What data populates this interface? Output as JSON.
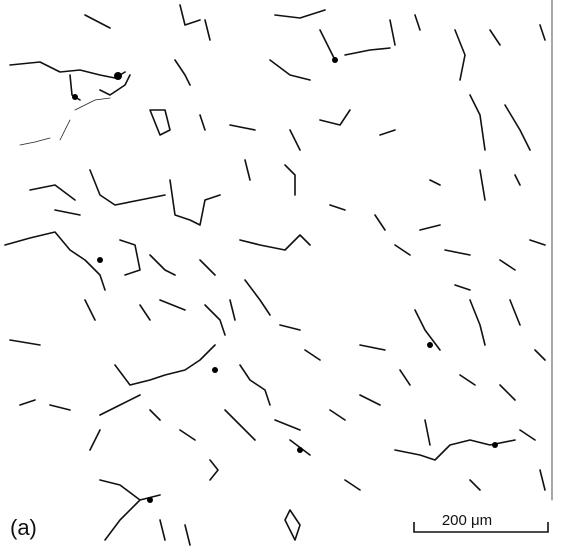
{
  "panel_label": "(a)",
  "scale_bar": {
    "label": "200 μm"
  }
}
